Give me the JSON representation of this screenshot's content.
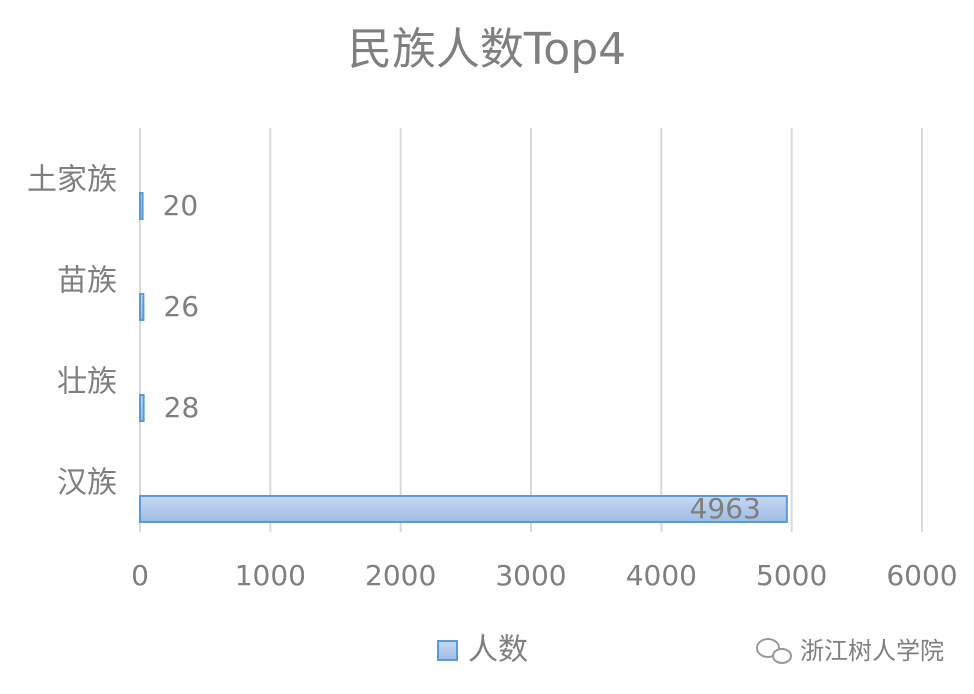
{
  "chart_data": {
    "type": "bar",
    "orientation": "horizontal",
    "title": "民族人数Top4",
    "categories": [
      "土家族",
      "苗族",
      "壮族",
      "汉族"
    ],
    "series": [
      {
        "name": "人数",
        "color": "#5b9bd5",
        "values": [
          20,
          26,
          28,
          4963
        ]
      }
    ],
    "xlim": [
      0,
      6000
    ],
    "xticks": [
      0,
      1000,
      2000,
      3000,
      4000,
      5000,
      6000
    ],
    "grid": true,
    "legend": "bottom",
    "watermark": "浙江树人学院"
  }
}
